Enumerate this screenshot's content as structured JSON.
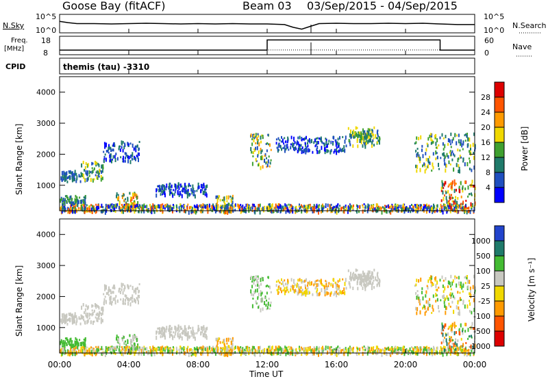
{
  "header": {
    "station": "Goose Bay (fitACF)",
    "beam": "Beam 03",
    "dates": "03/Sep/2015 - 04/Sep/2015"
  },
  "noise_panel": {
    "left_label": "N.Sky",
    "left_ticks": [
      "10^5",
      "10^0"
    ],
    "right_label": "N.Search",
    "right_ticks": [
      "10^5",
      "10^0"
    ]
  },
  "freq_panel": {
    "left_label_1": "Freq.",
    "left_label_2": "[MHz]",
    "left_ticks": [
      "18",
      "8"
    ],
    "right_label": "Nave",
    "right_ticks": [
      "60",
      "0"
    ]
  },
  "cpid": {
    "label": "CPID",
    "value": "themis (tau)  -3310"
  },
  "x_axis": {
    "ticks": [
      "00:00",
      "04:00",
      "08:00",
      "12:00",
      "16:00",
      "20:00",
      "00:00"
    ],
    "label": "Time UT"
  },
  "panels": {
    "power": {
      "ylabel": "Slant Range [km]",
      "yticks": [
        "1000",
        "2000",
        "3000",
        "4000"
      ],
      "cbar_label": "Power [dB]",
      "cbar_ticks": [
        "4",
        "8",
        "12",
        "16",
        "20",
        "24",
        "28"
      ]
    },
    "velocity": {
      "ylabel": "Slant Range [km]",
      "yticks": [
        "1000",
        "2000",
        "3000",
        "4000"
      ],
      "cbar_label": "Velocity [m s⁻¹]",
      "cbar_ticks": [
        "1000",
        "500",
        "100",
        "25",
        "-25",
        "-100",
        "-500",
        "-1000"
      ]
    }
  },
  "chart_data": [
    {
      "type": "line",
      "name": "noise-sky",
      "x_hours": [
        0,
        0.5,
        1,
        2,
        3,
        4,
        5,
        6,
        7,
        8,
        9,
        10,
        11,
        12,
        13,
        13.5,
        14,
        14.5,
        15,
        16,
        17,
        18,
        19,
        20,
        21,
        22,
        23,
        24
      ],
      "y_frac": [
        0.62,
        0.55,
        0.5,
        0.5,
        0.48,
        0.5,
        0.52,
        0.5,
        0.48,
        0.5,
        0.48,
        0.5,
        0.48,
        0.48,
        0.45,
        0.3,
        0.2,
        0.35,
        0.5,
        0.52,
        0.5,
        0.5,
        0.52,
        0.5,
        0.52,
        0.48,
        0.45,
        0.45
      ]
    },
    {
      "type": "line",
      "name": "frequency",
      "x_hours": [
        0,
        12,
        12,
        22,
        22,
        24
      ],
      "y_mhz": [
        10.5,
        10.5,
        16,
        16,
        10.5,
        10.5
      ]
    },
    {
      "type": "heatmap",
      "name": "power",
      "x_range": [
        0,
        24
      ],
      "y_range_km": [
        180,
        4500
      ],
      "colorscale": [
        "#0000ff",
        "#1f4fbf",
        "#1f7a6a",
        "#3fa030",
        "#f0d800",
        "#ff9a00",
        "#ff5500",
        "#dd0000"
      ],
      "clusters": [
        {
          "x": [
            0,
            1.2
          ],
          "y": [
            1150,
            1500
          ],
          "c": [
            1,
            2
          ]
        },
        {
          "x": [
            1.2,
            2.5
          ],
          "y": [
            1200,
            1800
          ],
          "c": [
            1,
            4
          ]
        },
        {
          "x": [
            2.5,
            4.6
          ],
          "y": [
            1800,
            2450
          ],
          "c": [
            0,
            2
          ]
        },
        {
          "x": [
            0,
            1.5
          ],
          "y": [
            400,
            700
          ],
          "c": [
            1,
            3
          ]
        },
        {
          "x": [
            3.2,
            4.5
          ],
          "y": [
            300,
            800
          ],
          "c": [
            2,
            6
          ]
        },
        {
          "x": [
            5.5,
            8.5
          ],
          "y": [
            700,
            1100
          ],
          "c": [
            0,
            2
          ]
        },
        {
          "x": [
            0,
            24
          ],
          "y": [
            180,
            420
          ],
          "c": [
            0,
            6
          ]
        },
        {
          "x": [
            9,
            10
          ],
          "y": [
            200,
            700
          ],
          "c": [
            1,
            5
          ]
        },
        {
          "x": [
            11,
            12.2
          ],
          "y": [
            1600,
            2700
          ],
          "c": [
            1,
            5
          ]
        },
        {
          "x": [
            12.5,
            16.5
          ],
          "y": [
            2100,
            2600
          ],
          "c": [
            0,
            2
          ]
        },
        {
          "x": [
            16.5,
            18.5
          ],
          "y": [
            2300,
            2900
          ],
          "c": [
            1,
            4
          ]
        },
        {
          "x": [
            17,
            18
          ],
          "y": [
            2450,
            2750
          ],
          "c": [
            2,
            4
          ]
        },
        {
          "x": [
            20.5,
            24
          ],
          "y": [
            1500,
            2700
          ],
          "c": [
            1,
            4
          ]
        },
        {
          "x": [
            22,
            24
          ],
          "y": [
            300,
            1200
          ],
          "c": [
            2,
            7
          ]
        }
      ]
    },
    {
      "type": "heatmap",
      "name": "velocity",
      "x_range": [
        0,
        24
      ],
      "y_range_km": [
        180,
        4500
      ],
      "colorscale": [
        "#2244cc",
        "#1f7a6a",
        "#44bb33",
        "#c8c8c0",
        "#f0d800",
        "#ff9a00",
        "#ff5500",
        "#dd0000"
      ],
      "clusters": [
        {
          "x": [
            0,
            1.2
          ],
          "y": [
            1150,
            1500
          ],
          "c": [
            3,
            3
          ]
        },
        {
          "x": [
            1.2,
            2.5
          ],
          "y": [
            1200,
            1800
          ],
          "c": [
            3,
            3
          ]
        },
        {
          "x": [
            2.5,
            4.6
          ],
          "y": [
            1800,
            2450
          ],
          "c": [
            3,
            3
          ]
        },
        {
          "x": [
            0,
            1.5
          ],
          "y": [
            400,
            700
          ],
          "c": [
            2,
            2
          ]
        },
        {
          "x": [
            3.2,
            4.5
          ],
          "y": [
            300,
            800
          ],
          "c": [
            2,
            3
          ]
        },
        {
          "x": [
            5.5,
            8.5
          ],
          "y": [
            700,
            1100
          ],
          "c": [
            3,
            3
          ]
        },
        {
          "x": [
            0,
            24
          ],
          "y": [
            180,
            420
          ],
          "c": [
            2,
            5
          ]
        },
        {
          "x": [
            9,
            10
          ],
          "y": [
            200,
            700
          ],
          "c": [
            3,
            5
          ]
        },
        {
          "x": [
            11,
            12.2
          ],
          "y": [
            1600,
            2700
          ],
          "c": [
            2,
            3
          ]
        },
        {
          "x": [
            12.5,
            16.5
          ],
          "y": [
            2100,
            2600
          ],
          "c": [
            3,
            5
          ]
        },
        {
          "x": [
            16.5,
            18.5
          ],
          "y": [
            2300,
            2900
          ],
          "c": [
            3,
            3
          ]
        },
        {
          "x": [
            17,
            18
          ],
          "y": [
            2450,
            2750
          ],
          "c": [
            3,
            3
          ]
        },
        {
          "x": [
            20.5,
            24
          ],
          "y": [
            1500,
            2700
          ],
          "c": [
            2,
            5
          ]
        },
        {
          "x": [
            22,
            24
          ],
          "y": [
            300,
            1200
          ],
          "c": [
            1,
            6
          ]
        }
      ]
    }
  ]
}
